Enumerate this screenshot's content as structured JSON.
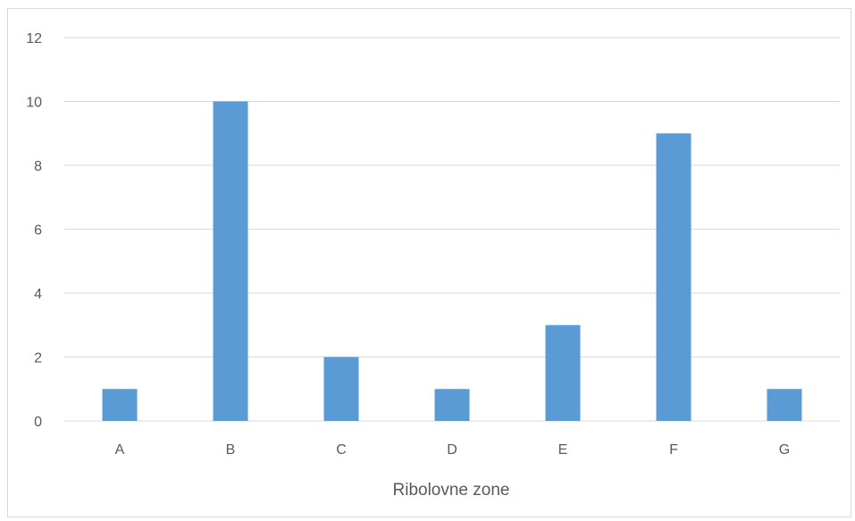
{
  "chart_data": {
    "type": "bar",
    "title": "",
    "xlabel": "Ribolovne zone",
    "ylabel": "",
    "categories": [
      "A",
      "B",
      "C",
      "D",
      "E",
      "F",
      "G"
    ],
    "values": [
      1,
      10,
      2,
      1,
      3,
      9,
      1
    ],
    "ylim": [
      0,
      12
    ],
    "yticks": [
      0,
      2,
      4,
      6,
      8,
      10,
      12
    ],
    "grid": true,
    "legend": "none",
    "bar_color": "#5b9bd5",
    "grid_color": "#d9d9d9",
    "text_color": "#595959"
  }
}
